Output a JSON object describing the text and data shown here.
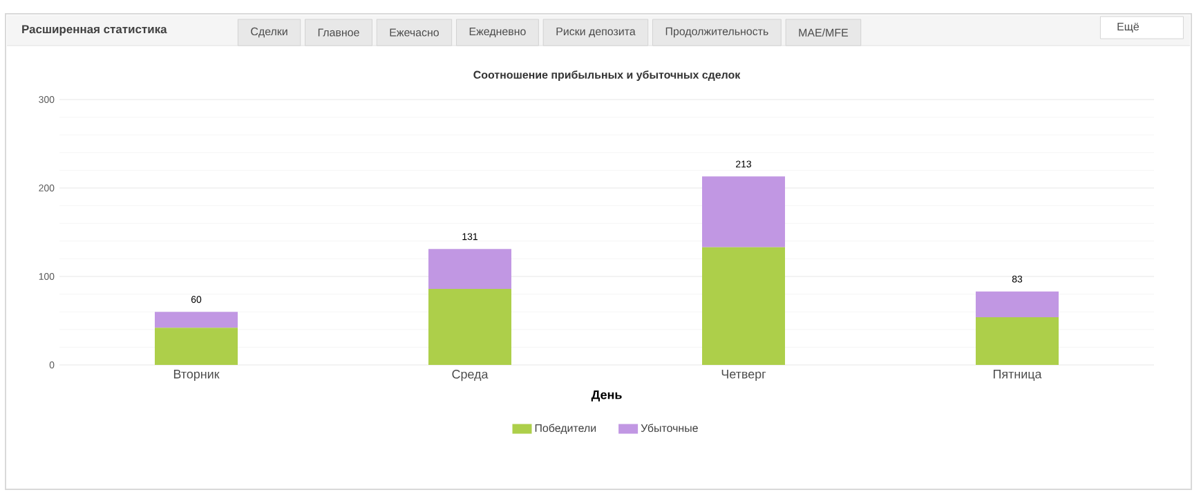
{
  "chart_data": {
    "type": "bar",
    "stacked": true,
    "title": "Соотношение прибыльных и убыточных сделок",
    "xlabel": "День",
    "categories": [
      "Вторник",
      "Среда",
      "Четверг",
      "Пятница"
    ],
    "series": [
      {
        "name": "Победители",
        "color": "#adcf4a",
        "values": [
          42,
          86,
          133,
          54
        ]
      },
      {
        "name": "Убыточные",
        "color": "#c197e3",
        "values": [
          18,
          45,
          80,
          29
        ]
      }
    ],
    "totals": [
      "60",
      "131",
      "213",
      "83"
    ],
    "ylim": [
      0,
      300
    ],
    "yticks": [
      0,
      100,
      200,
      300
    ],
    "grid": "y",
    "legend": "bottom",
    "annotations": [
      "Расширенная статистика",
      "Сделки",
      "Главное",
      "Ежечасно",
      "Ежедневно",
      "Риски депозита",
      "Продолжительность",
      "MAE/MFE",
      "Ещё"
    ]
  }
}
